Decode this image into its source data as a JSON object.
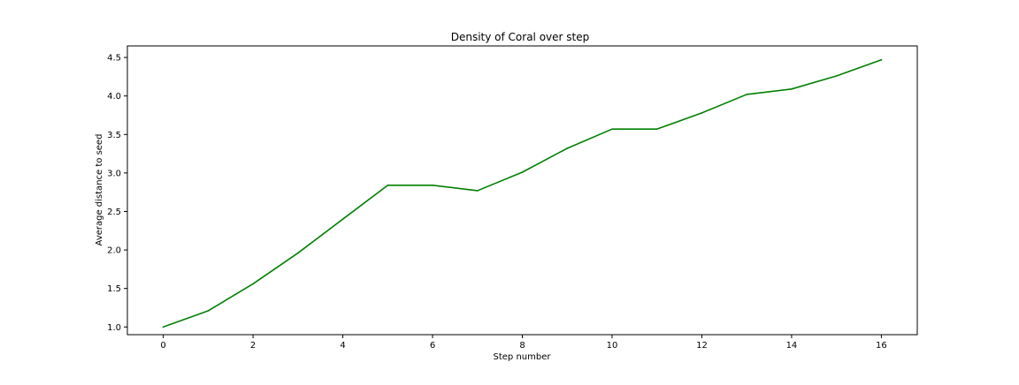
{
  "chart_data": {
    "type": "line",
    "title": "Density of Coral over step",
    "xlabel": "Step number",
    "ylabel": "Average distance to seed",
    "xlim": [
      -0.8,
      16.8
    ],
    "ylim": [
      0.9,
      4.65
    ],
    "xticks": [
      0,
      2,
      4,
      6,
      8,
      10,
      12,
      14,
      16
    ],
    "xtick_labels": [
      "0",
      "2",
      "4",
      "6",
      "8",
      "10",
      "12",
      "14",
      "16"
    ],
    "yticks": [
      1.0,
      1.5,
      2.0,
      2.5,
      3.0,
      3.5,
      4.0,
      4.5
    ],
    "ytick_labels": [
      "1.0",
      "1.5",
      "2.0",
      "2.5",
      "3.0",
      "3.5",
      "4.0",
      "4.5"
    ],
    "grid": false,
    "series": [
      {
        "color": "#008000",
        "x": [
          0,
          1,
          2,
          3,
          4,
          5,
          6,
          7,
          8,
          9,
          10,
          11,
          12,
          13,
          14,
          15,
          16
        ],
        "y": [
          1.0,
          1.21,
          1.56,
          1.96,
          2.4,
          2.84,
          2.84,
          2.77,
          3.01,
          3.32,
          3.57,
          3.57,
          3.78,
          4.02,
          4.09,
          4.26,
          4.47
        ]
      }
    ]
  }
}
